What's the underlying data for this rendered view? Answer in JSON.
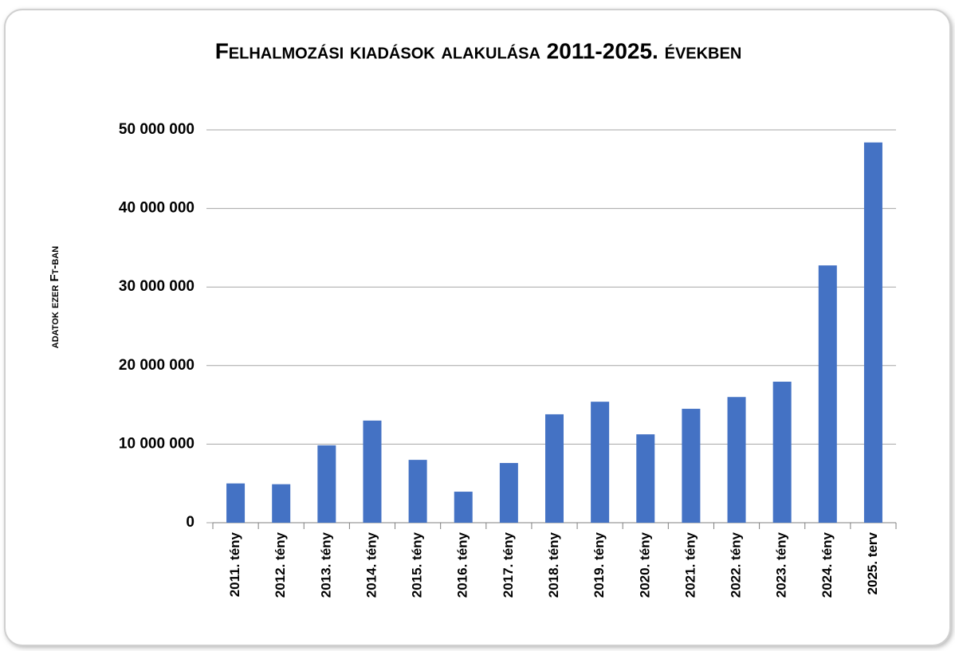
{
  "chart_data": {
    "type": "bar",
    "title": "Felhalmozási kiadások alakulása 2011-2025. években",
    "y_label": "adatok ezer Ft-ban",
    "categories": [
      "2011. tény",
      "2012. tény",
      "2013. tény",
      "2014. tény",
      "2015. tény",
      "2016. tény",
      "2017. tény",
      "2018. tény",
      "2019. tény",
      "2020. tény",
      "2021. tény",
      "2022. tény",
      "2023. tény",
      "2024. tény",
      "2025. terv"
    ],
    "values": [
      5000000,
      4900000,
      9850000,
      13000000,
      8000000,
      3950000,
      7600000,
      13800000,
      15400000,
      11250000,
      14500000,
      16000000,
      17950000,
      32750000,
      48400000
    ],
    "color": "#4472c4",
    "ylim": [
      0,
      50000000
    ],
    "yticks": [
      0,
      {
        "value": 10000000,
        "label": "10 000 000"
      },
      {
        "value": 20000000,
        "label": "20 000 000"
      },
      {
        "value": 30000000,
        "label": "30 000 000"
      },
      {
        "value": 40000000,
        "label": "40 000 000"
      },
      {
        "value": 50000000,
        "label": "50 000 000"
      }
    ],
    "grid": true
  }
}
